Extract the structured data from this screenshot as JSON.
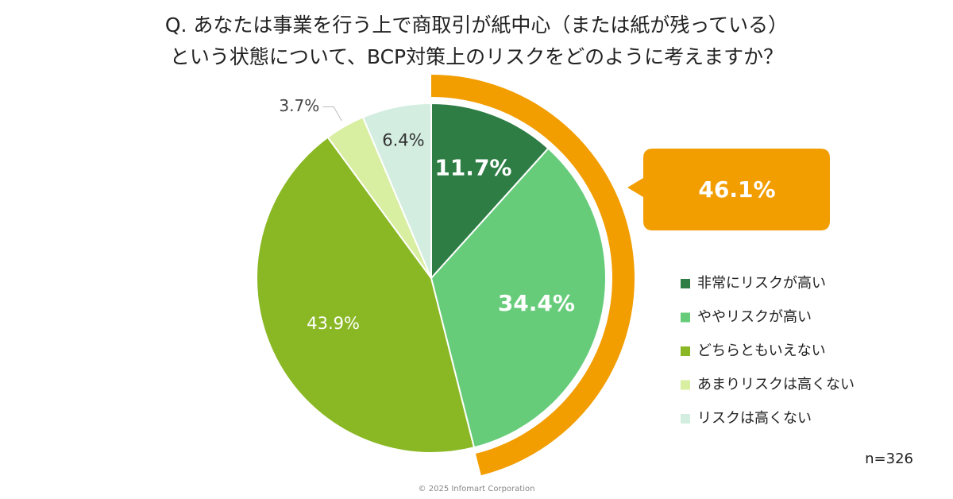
{
  "chart_data": {
    "type": "pie",
    "title": [
      "Q. あなたは事業を行う上で商取引が紙中心（または紙が残っている）",
      "という状態について、BCP対策上のリスクをどのように考えますか？"
    ],
    "categories": [
      "非常にリスクが高い",
      "ややリスクが高い",
      "どちらともいえない",
      "あまりリスクは高くない",
      "リスクは高くない"
    ],
    "values": [
      11.7,
      34.4,
      43.9,
      3.7,
      6.4
    ],
    "value_labels": [
      "11.7%",
      "34.4%",
      "43.9%",
      "3.7%",
      "6.4%"
    ],
    "colors": [
      "#2e7d45",
      "#66cc7a",
      "#8ab825",
      "#d8eea0",
      "#d3ede0"
    ],
    "callout": {
      "value": 46.1,
      "label": "46.1%",
      "color": "#f29d00"
    },
    "note": "n=326",
    "footer": "© 2025 Infomart Corporation"
  }
}
